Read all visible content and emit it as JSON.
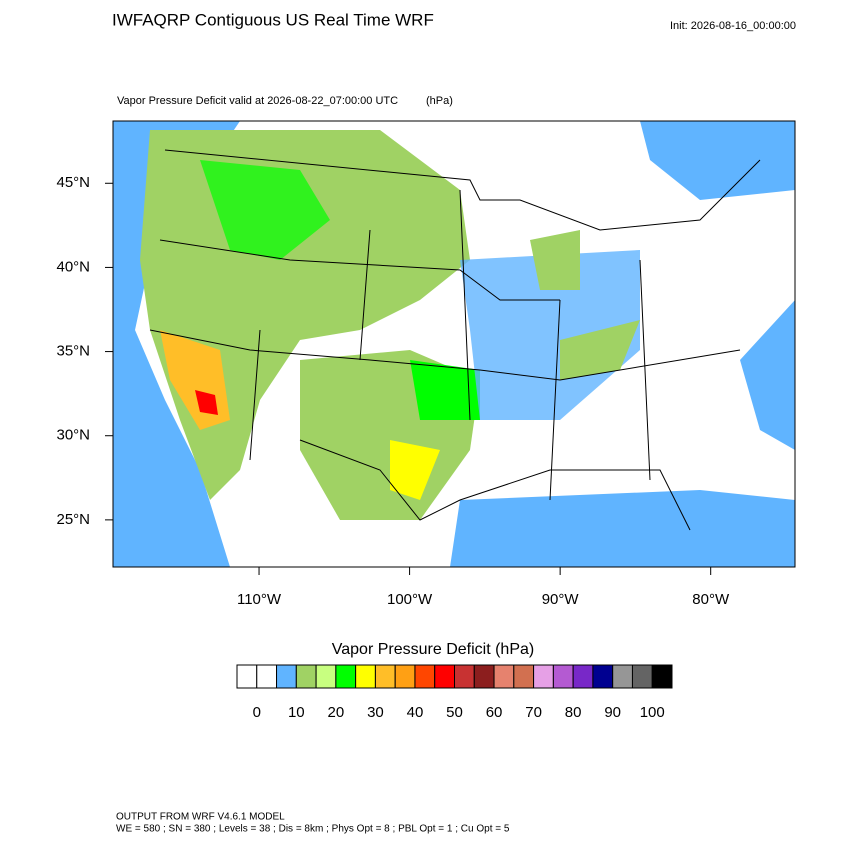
{
  "chart_data": {
    "type": "filled-contour-map",
    "title": "IWFAQRP Contiguous US Real Time WRF",
    "init": "Init: 2026-08-16_00:00:00",
    "subtitle": "Vapor Pressure Deficit valid at 2026-08-22_07:00:00 UTC",
    "units": "(hPa)",
    "xlim": [
      -119.7,
      -74.4
    ],
    "ylim": [
      22.2,
      48.7
    ],
    "xticks": [
      {
        "value": -110,
        "label": "110°W"
      },
      {
        "value": -100,
        "label": "100°W"
      },
      {
        "value": -90,
        "label": "90°W"
      },
      {
        "value": -80,
        "label": "80°W"
      }
    ],
    "yticks": [
      {
        "value": 25,
        "label": "25°N"
      },
      {
        "value": 30,
        "label": "30°N"
      },
      {
        "value": 35,
        "label": "35°N"
      },
      {
        "value": 40,
        "label": "40°N"
      },
      {
        "value": 45,
        "label": "45°N"
      }
    ],
    "colorbar": {
      "title": "Vapor Pressure Deficit  (hPa)",
      "lim": [
        -5,
        105
      ],
      "ticks": [
        0,
        10,
        20,
        30,
        40,
        50,
        60,
        70,
        80,
        90,
        100
      ],
      "colors": [
        "#ffffff",
        "#ffffff",
        "#60b4ff",
        "#a0d264",
        "#c8ff80",
        "#00ff00",
        "#ffff00",
        "#ffbe28",
        "#ffa014",
        "#ff4600",
        "#ff0000",
        "#c83232",
        "#8c1e1e",
        "#e6826e",
        "#d27050",
        "#e6a0e6",
        "#b45ad2",
        "#7828c8",
        "#000090",
        "#969696",
        "#646464",
        "#000000"
      ]
    },
    "footer": [
      "OUTPUT FROM WRF V4.6.1 MODEL",
      "WE = 580 ; SN = 380 ; Levels = 38 ; Dis = 8km ; Phys Opt = 8 ; PBL Opt = 1 ; Cu Opt = 5"
    ]
  }
}
